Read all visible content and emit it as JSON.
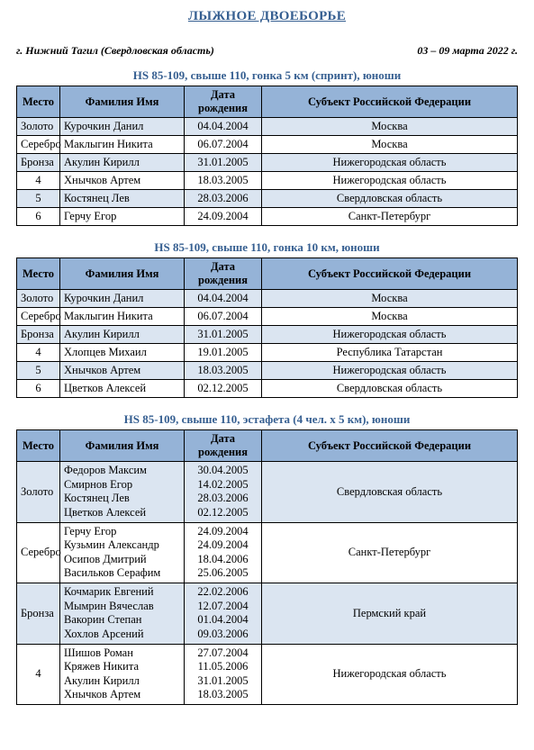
{
  "title": "ЛЫЖНОЕ ДВОЕБОРЬЕ",
  "location": "г. Нижний Тагил (Свердловская область)",
  "dates": "03 – 09 марта 2022 г.",
  "headers": {
    "place": "Место",
    "name": "Фамилия Имя",
    "dob": "Дата рождения",
    "subject": "Субъект Российской Федерации"
  },
  "tables": [
    {
      "title": "HS 85-109, свыше 110, гонка 5 км (спринт), юноши",
      "rows": [
        {
          "place": "Золото",
          "name": "Курочкин Данил",
          "dob": "04.04.2004",
          "subject": "Москва",
          "z": true
        },
        {
          "place": "Серебро",
          "name": "Маклыгин Никита",
          "dob": "06.07.2004",
          "subject": "Москва",
          "z": false
        },
        {
          "place": "Бронза",
          "name": "Акулин Кирилл",
          "dob": "31.01.2005",
          "subject": "Нижегородская область",
          "z": true
        },
        {
          "place": "4",
          "name": "Хнычков Артем",
          "dob": "18.03.2005",
          "subject": "Нижегородская область",
          "z": false
        },
        {
          "place": "5",
          "name": "Костянец Лев",
          "dob": "28.03.2006",
          "subject": "Свердловская область",
          "z": true
        },
        {
          "place": "6",
          "name": "Герчу Егор",
          "dob": "24.09.2004",
          "subject": "Санкт-Петербург",
          "z": false
        }
      ]
    },
    {
      "title": "HS 85-109, свыше 110, гонка 10 км, юноши",
      "rows": [
        {
          "place": "Золото",
          "name": "Курочкин Данил",
          "dob": "04.04.2004",
          "subject": "Москва",
          "z": true
        },
        {
          "place": "Серебро",
          "name": "Маклыгин Никита",
          "dob": "06.07.2004",
          "subject": "Москва",
          "z": false
        },
        {
          "place": "Бронза",
          "name": "Акулин Кирилл",
          "dob": "31.01.2005",
          "subject": "Нижегородская область",
          "z": true
        },
        {
          "place": "4",
          "name": "Хлопцев Михаил",
          "dob": "19.01.2005",
          "subject": "Республика Татарстан",
          "z": false
        },
        {
          "place": "5",
          "name": "Хнычков Артем",
          "dob": "18.03.2005",
          "subject": "Нижегородская область",
          "z": true
        },
        {
          "place": "6",
          "name": "Цветков Алексей",
          "dob": "02.12.2005",
          "subject": "Свердловская область",
          "z": false
        }
      ]
    }
  ],
  "relayTable": {
    "title": "HS 85-109, свыше 110, эстафета (4 чел. x 5 км), юноши",
    "rows": [
      {
        "place": "Золото",
        "names": [
          "Федоров Максим",
          "Смирнов Егор",
          "Костянец Лев",
          "Цветков Алексей"
        ],
        "dobs": [
          "30.04.2005",
          "14.02.2005",
          "28.03.2006",
          "02.12.2005"
        ],
        "subject": "Свердловская область",
        "z": true
      },
      {
        "place": "Серебро",
        "names": [
          "Герчу Егор",
          "Кузьмин Александр",
          "Осипов Дмитрий",
          "Васильков Серафим"
        ],
        "dobs": [
          "24.09.2004",
          "24.09.2004",
          "18.04.2006",
          "25.06.2005"
        ],
        "subject": "Санкт-Петербург",
        "z": false
      },
      {
        "place": "Бронза",
        "names": [
          "Кочмарик Евгений",
          "Мымрин Вячеслав",
          "Вакорин Степан",
          "Хохлов Арсений"
        ],
        "dobs": [
          "22.02.2006",
          "12.07.2004",
          "01.04.2004",
          "09.03.2006"
        ],
        "subject": "Пермский край",
        "z": true
      },
      {
        "place": "4",
        "names": [
          "Шишов Роман",
          "Кряжев Никита",
          "Акулин Кирилл",
          "Хнычков Артем"
        ],
        "dobs": [
          "27.07.2004",
          "11.05.2006",
          "31.01.2005",
          "18.03.2005"
        ],
        "subject": "Нижегородская область",
        "z": false
      }
    ]
  }
}
